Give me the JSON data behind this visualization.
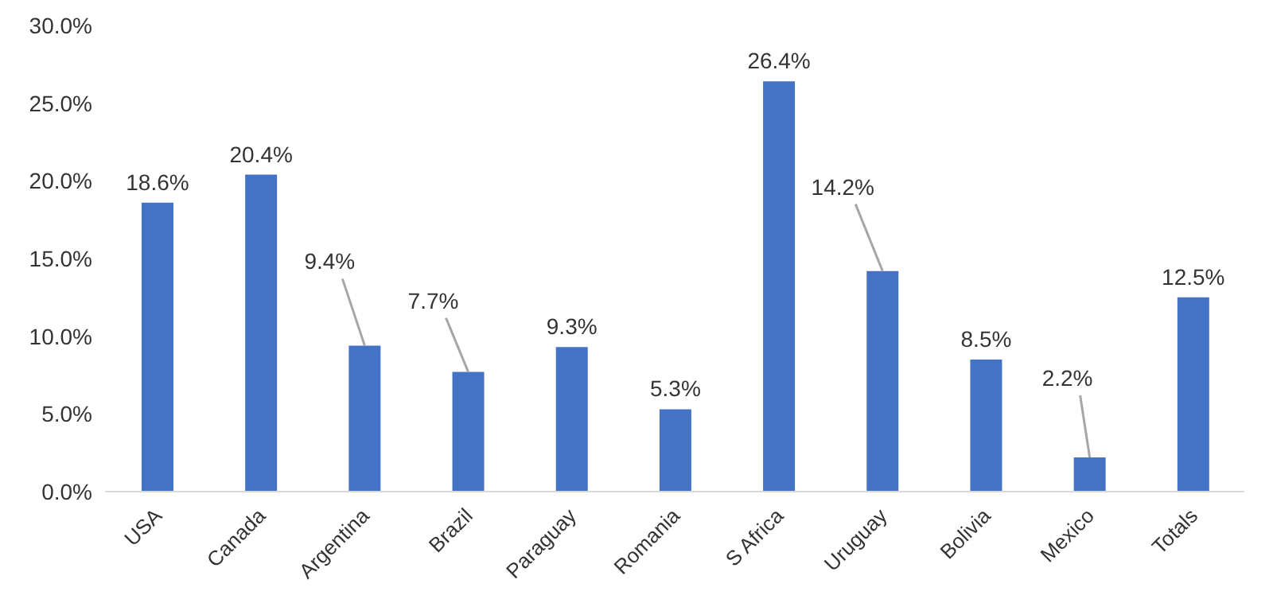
{
  "chart_data": {
    "type": "bar",
    "categories": [
      "USA",
      "Canada",
      "Argentina",
      "Brazil",
      "Paraguay",
      "Romania",
      "S Africa",
      "Uruguay",
      "Bolivia",
      "Mexico",
      "Totals"
    ],
    "values": [
      18.6,
      20.4,
      9.4,
      7.7,
      9.3,
      5.3,
      26.4,
      14.2,
      8.5,
      2.2,
      12.5
    ],
    "value_labels": [
      "18.6%",
      "20.4%",
      "9.4%",
      "7.7%",
      "9.3%",
      "5.3%",
      "26.4%",
      "14.2%",
      "8.5%",
      "2.2%",
      "12.5%"
    ],
    "color": "#4472c4",
    "ylim": [
      0,
      30
    ],
    "yticks": [
      {
        "value": 0,
        "label": "0.0%"
      },
      {
        "value": 5,
        "label": "5.0%"
      },
      {
        "value": 10,
        "label": "10.0%"
      },
      {
        "value": 15,
        "label": "15.0%"
      },
      {
        "value": 20,
        "label": "20.0%"
      },
      {
        "value": 25,
        "label": "25.0%"
      },
      {
        "value": 30,
        "label": "30.0%"
      }
    ],
    "grid": false,
    "legend": false
  }
}
